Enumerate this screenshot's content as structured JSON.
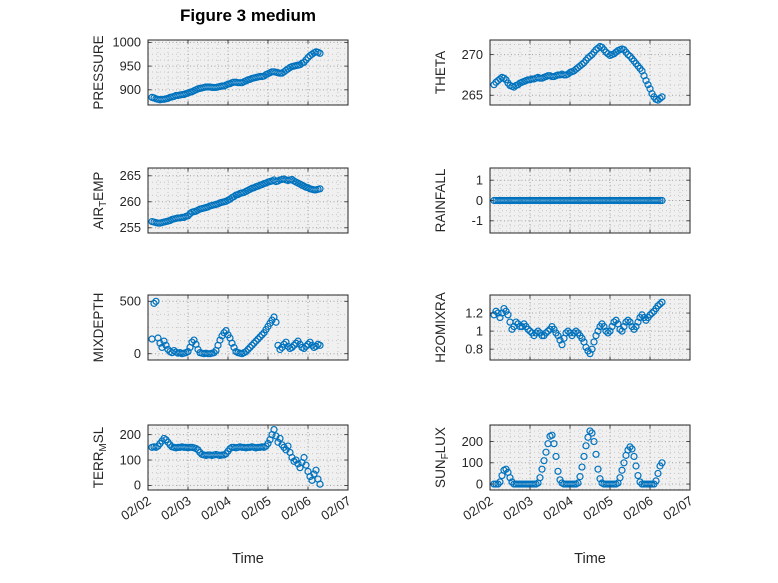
{
  "colors": {
    "marker": "#0072BD",
    "grid_major": "#a0a0a0",
    "grid_minor": "#c6c6c6",
    "axis": "#262626",
    "plot_bg": "#f0f0f0",
    "text": "#262626"
  },
  "chart_data": {
    "type": "scatter",
    "title": "Figure 3 medium",
    "xlabel": "Time",
    "legend": "none",
    "grid": "on",
    "marker": "open-circle",
    "x_ticks": {
      "values": [
        2,
        3,
        4,
        5,
        6,
        7
      ],
      "labels": [
        "02/02",
        "02/03",
        "02/04",
        "02/05",
        "02/06",
        "02/07"
      ]
    },
    "x": [
      2.1,
      2.15,
      2.2,
      2.25,
      2.3,
      2.35,
      2.4,
      2.45,
      2.5,
      2.55,
      2.6,
      2.65,
      2.7,
      2.75,
      2.8,
      2.85,
      2.9,
      2.95,
      3,
      3.05,
      3.1,
      3.15,
      3.2,
      3.25,
      3.3,
      3.35,
      3.4,
      3.45,
      3.5,
      3.55,
      3.6,
      3.65,
      3.7,
      3.75,
      3.8,
      3.85,
      3.9,
      3.95,
      4,
      4.05,
      4.1,
      4.15,
      4.2,
      4.25,
      4.3,
      4.35,
      4.4,
      4.45,
      4.5,
      4.55,
      4.6,
      4.65,
      4.7,
      4.75,
      4.8,
      4.85,
      4.9,
      4.95,
      5,
      5.05,
      5.1,
      5.15,
      5.2,
      5.25,
      5.3,
      5.35,
      5.4,
      5.45,
      5.5,
      5.55,
      5.6,
      5.65,
      5.7,
      5.75,
      5.8,
      5.85,
      5.9,
      5.95,
      6,
      6.05,
      6.1,
      6.15,
      6.2,
      6.25,
      6.3
    ],
    "subplots": [
      {
        "name": "PRESSURE",
        "row": 0,
        "col": 0,
        "label": {
          "pre": "PRESSURE",
          "sub": "",
          "post": ""
        },
        "ylim": [
          868,
          1005
        ],
        "yticks": [
          900,
          950,
          1000
        ],
        "ytick_labels": [
          "900",
          "950",
          "1000"
        ],
        "values": [
          884,
          883,
          881,
          880,
          879,
          880,
          880,
          881,
          882,
          884,
          885,
          886,
          888,
          888,
          889,
          890,
          890,
          892,
          893,
          895,
          896,
          898,
          900,
          902,
          903,
          904,
          905,
          906,
          906,
          906,
          905,
          905,
          905,
          906,
          907,
          908,
          908,
          910,
          912,
          913,
          915,
          916,
          916,
          915,
          915,
          915,
          917,
          919,
          921,
          922,
          924,
          925,
          926,
          927,
          928,
          928,
          929,
          932,
          934,
          936,
          938,
          938,
          937,
          936,
          935,
          935,
          938,
          941,
          944,
          947,
          949,
          950,
          951,
          952,
          953,
          956,
          958,
          963,
          968,
          972,
          975,
          978,
          980,
          979,
          977
        ]
      },
      {
        "name": "THETA",
        "row": 0,
        "col": 1,
        "label": {
          "pre": "THETA",
          "sub": "",
          "post": ""
        },
        "ylim": [
          263.8,
          271.8
        ],
        "yticks": [
          265,
          270
        ],
        "ytick_labels": [
          "265",
          "270"
        ],
        "values": [
          266.3,
          266.6,
          266.8,
          267,
          267.2,
          267.1,
          266.9,
          266.5,
          266.2,
          266.1,
          266,
          266.2,
          266.3,
          266.5,
          266.6,
          266.7,
          266.8,
          266.9,
          266.9,
          267,
          267,
          267.1,
          267.2,
          267.1,
          267.1,
          267.2,
          267.3,
          267.4,
          267.4,
          267.3,
          267.3,
          267.4,
          267.5,
          267.5,
          267.6,
          267.5,
          267.5,
          267.6,
          267.8,
          267.9,
          268,
          268.2,
          268.4,
          268.6,
          268.8,
          269,
          269.3,
          269.6,
          269.8,
          270,
          270.3,
          270.6,
          270.8,
          271,
          270.9,
          270.6,
          270.3,
          270.1,
          269.9,
          270,
          270.1,
          270.3,
          270.5,
          270.6,
          270.7,
          270.6,
          270.3,
          270,
          269.8,
          269.5,
          269.2,
          268.9,
          268.6,
          268.3,
          268,
          267.4,
          266.8,
          266.3,
          265.8,
          265.2,
          264.8,
          264.5,
          264.4,
          264.6,
          264.8
        ]
      },
      {
        "name": "AIR_TEMP",
        "row": 1,
        "col": 0,
        "label": {
          "pre": "AIR",
          "sub": "T",
          "post": "EMP"
        },
        "ylim": [
          254,
          266.5
        ],
        "yticks": [
          255,
          260,
          265
        ],
        "ytick_labels": [
          "255",
          "260",
          "265"
        ],
        "values": [
          256.2,
          256.1,
          256,
          255.9,
          255.9,
          256,
          256.1,
          256.2,
          256.3,
          256.4,
          256.6,
          256.7,
          256.8,
          256.9,
          256.9,
          257,
          257,
          257.2,
          257.3,
          257.7,
          258,
          258.1,
          258.2,
          258.4,
          258.6,
          258.7,
          258.8,
          258.9,
          259,
          259.2,
          259.3,
          259.4,
          259.5,
          259.6,
          259.8,
          259.9,
          260,
          260.1,
          260.3,
          260.5,
          260.8,
          261,
          261.3,
          261.4,
          261.6,
          261.7,
          261.8,
          262,
          262.2,
          262.4,
          262.6,
          262.7,
          262.9,
          263,
          263.2,
          263.3,
          263.5,
          263.6,
          263.8,
          263.9,
          264,
          264.2,
          263.9,
          264,
          264.2,
          264.3,
          264.4,
          264.2,
          264.1,
          264.2,
          264.3,
          264,
          263.8,
          263.6,
          263.4,
          263.2,
          263,
          262.8,
          262.7,
          262.5,
          262.4,
          262.3,
          262.3,
          262.4,
          262.5
        ]
      },
      {
        "name": "RAINFALL",
        "row": 1,
        "col": 1,
        "label": {
          "pre": "RAINFALL",
          "sub": "",
          "post": ""
        },
        "ylim": [
          -1.6,
          1.6
        ],
        "yticks": [
          -1,
          0,
          1
        ],
        "ytick_labels": [
          "-1",
          "0",
          "1"
        ],
        "values": [
          0,
          0,
          0,
          0,
          0,
          0,
          0,
          0,
          0,
          0,
          0,
          0,
          0,
          0,
          0,
          0,
          0,
          0,
          0,
          0,
          0,
          0,
          0,
          0,
          0,
          0,
          0,
          0,
          0,
          0,
          0,
          0,
          0,
          0,
          0,
          0,
          0,
          0,
          0,
          0,
          0,
          0,
          0,
          0,
          0,
          0,
          0,
          0,
          0,
          0,
          0,
          0,
          0,
          0,
          0,
          0,
          0,
          0,
          0,
          0,
          0,
          0,
          0,
          0,
          0,
          0,
          0,
          0,
          0,
          0,
          0,
          0,
          0,
          0,
          0,
          0,
          0,
          0,
          0,
          0,
          0,
          0,
          0,
          0,
          0
        ]
      },
      {
        "name": "MIXDEPTH",
        "row": 2,
        "col": 0,
        "label": {
          "pre": "MIXDEPTH",
          "sub": "",
          "post": ""
        },
        "ylim": [
          -60,
          560
        ],
        "yticks": [
          0,
          500
        ],
        "ytick_labels": [
          "0",
          "500"
        ],
        "values": [
          140,
          480,
          500,
          150,
          100,
          60,
          120,
          80,
          40,
          20,
          10,
          30,
          15,
          5,
          10,
          0,
          5,
          10,
          20,
          60,
          110,
          130,
          90,
          40,
          10,
          5,
          0,
          5,
          0,
          0,
          5,
          10,
          30,
          80,
          130,
          170,
          200,
          220,
          180,
          150,
          100,
          60,
          20,
          10,
          5,
          0,
          10,
          20,
          40,
          60,
          80,
          100,
          120,
          140,
          160,
          180,
          200,
          230,
          260,
          290,
          320,
          350,
          300,
          80,
          40,
          60,
          90,
          110,
          70,
          50,
          60,
          80,
          100,
          120,
          90,
          60,
          50,
          70,
          90,
          110,
          80,
          60,
          70,
          90,
          80
        ]
      },
      {
        "name": "H2OMIXRA",
        "row": 2,
        "col": 1,
        "label": {
          "pre": "H2OMIXRA",
          "sub": "",
          "post": ""
        },
        "ylim": [
          0.68,
          1.4
        ],
        "yticks": [
          0.8,
          1,
          1.2
        ],
        "ytick_labels": [
          "0.8",
          "1",
          "1.2"
        ],
        "values": [
          1.18,
          1.22,
          1.2,
          1.15,
          1.2,
          1.25,
          1.22,
          1.18,
          1.1,
          1.02,
          1.05,
          1.1,
          1.08,
          1.05,
          1.05,
          1.08,
          1.05,
          1.02,
          1,
          0.98,
          0.95,
          0.98,
          1,
          0.98,
          0.95,
          0.95,
          0.98,
          1,
          1.02,
          1.05,
          1.02,
          0.98,
          0.95,
          0.9,
          0.85,
          0.92,
          0.98,
          1,
          0.98,
          0.95,
          0.98,
          1,
          0.98,
          0.95,
          0.92,
          0.88,
          0.82,
          0.78,
          0.75,
          0.8,
          0.88,
          0.95,
          1,
          1.05,
          1.08,
          1.05,
          1,
          0.98,
          1,
          1.05,
          1.1,
          1.12,
          1.08,
          1.02,
          1,
          1.05,
          1.1,
          1.12,
          1.1,
          1.05,
          1.02,
          1.05,
          1.1,
          1.15,
          1.18,
          1.15,
          1.12,
          1.15,
          1.18,
          1.2,
          1.22,
          1.25,
          1.28,
          1.3,
          1.32
        ]
      },
      {
        "name": "TERR_MSL",
        "row": 3,
        "col": 0,
        "label": {
          "pre": "TERR",
          "sub": "M",
          "post": "SL"
        },
        "ylim": [
          -18,
          238
        ],
        "yticks": [
          0,
          100,
          200
        ],
        "ytick_labels": [
          "0",
          "100",
          "200"
        ],
        "values": [
          150,
          152,
          150,
          155,
          165,
          175,
          185,
          180,
          170,
          160,
          152,
          150,
          148,
          150,
          150,
          152,
          150,
          150,
          148,
          150,
          150,
          148,
          145,
          140,
          130,
          122,
          120,
          118,
          120,
          120,
          118,
          120,
          122,
          120,
          118,
          120,
          120,
          125,
          135,
          145,
          150,
          150,
          148,
          150,
          152,
          150,
          150,
          148,
          150,
          150,
          152,
          150,
          148,
          150,
          150,
          152,
          150,
          155,
          165,
          180,
          200,
          220,
          195,
          170,
          185,
          160,
          150,
          140,
          155,
          130,
          110,
          95,
          100,
          85,
          70,
          90,
          110,
          80,
          55,
          35,
          20,
          45,
          60,
          25,
          5
        ]
      },
      {
        "name": "SUN_FLUX",
        "row": 3,
        "col": 1,
        "label": {
          "pre": "SUN",
          "sub": "F",
          "post": "LUX"
        },
        "ylim": [
          -28,
          278
        ],
        "yticks": [
          0,
          100,
          200
        ],
        "ytick_labels": [
          "0",
          "100",
          "200"
        ],
        "values": [
          0,
          0,
          0,
          10,
          40,
          65,
          70,
          55,
          30,
          10,
          0,
          0,
          0,
          0,
          0,
          0,
          0,
          0,
          0,
          0,
          0,
          0,
          5,
          30,
          70,
          110,
          150,
          190,
          225,
          230,
          190,
          130,
          60,
          20,
          5,
          0,
          0,
          0,
          0,
          0,
          0,
          0,
          5,
          35,
          80,
          130,
          180,
          220,
          250,
          240,
          200,
          140,
          70,
          25,
          5,
          0,
          0,
          0,
          0,
          0,
          0,
          0,
          5,
          30,
          65,
          100,
          135,
          160,
          175,
          165,
          130,
          85,
          40,
          10,
          0,
          0,
          0,
          0,
          0,
          0,
          0,
          15,
          50,
          85,
          100
        ]
      }
    ]
  }
}
